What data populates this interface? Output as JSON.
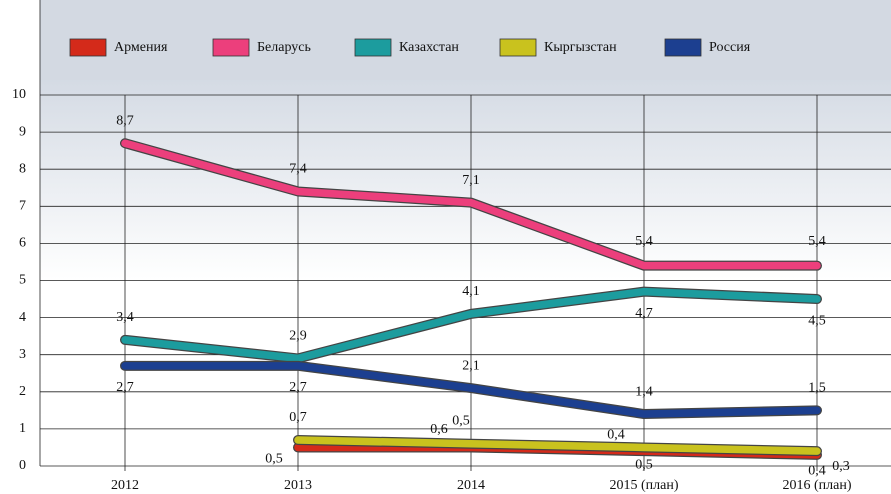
{
  "chart_data": {
    "type": "line",
    "categories": [
      "2012",
      "2013",
      "2014",
      "2015 (план)",
      "2016 (план)"
    ],
    "series": [
      {
        "name": "Армения",
        "color": "#d42a1a",
        "values": [
          null,
          0.5,
          0.5,
          0.4,
          0.3
        ],
        "value_labels": [
          null,
          "0,5",
          "0,5",
          "0,4",
          "0,3"
        ]
      },
      {
        "name": "Беларусь",
        "color": "#ec3f7c",
        "values": [
          8.7,
          7.4,
          7.1,
          5.4,
          5.4
        ],
        "value_labels": [
          "8,7",
          "7,4",
          "7,1",
          "5,4",
          "5,4"
        ]
      },
      {
        "name": "Казахстан",
        "color": "#1c9c9e",
        "values": [
          3.4,
          2.9,
          4.1,
          4.7,
          4.5
        ],
        "value_labels": [
          "3,4",
          "2,9",
          "4,1",
          "4,7",
          "4,5"
        ]
      },
      {
        "name": "Кыргызстан",
        "color": "#c9c21e",
        "values": [
          null,
          0.7,
          0.6,
          0.5,
          0.4
        ],
        "value_labels": [
          null,
          "0,7",
          "0,6",
          "0,5",
          "0,4"
        ]
      },
      {
        "name": "Россия",
        "color": "#1c3f90",
        "values": [
          2.7,
          2.7,
          2.1,
          1.4,
          1.5
        ],
        "value_labels": [
          "2,7",
          "2,7",
          "2,1",
          "1,4",
          "1,5"
        ]
      }
    ],
    "ylim": [
      0,
      10
    ],
    "yticks": [
      0,
      1,
      2,
      3,
      4,
      5,
      6,
      7,
      8,
      9,
      10
    ],
    "grid": true,
    "legend": "top"
  }
}
